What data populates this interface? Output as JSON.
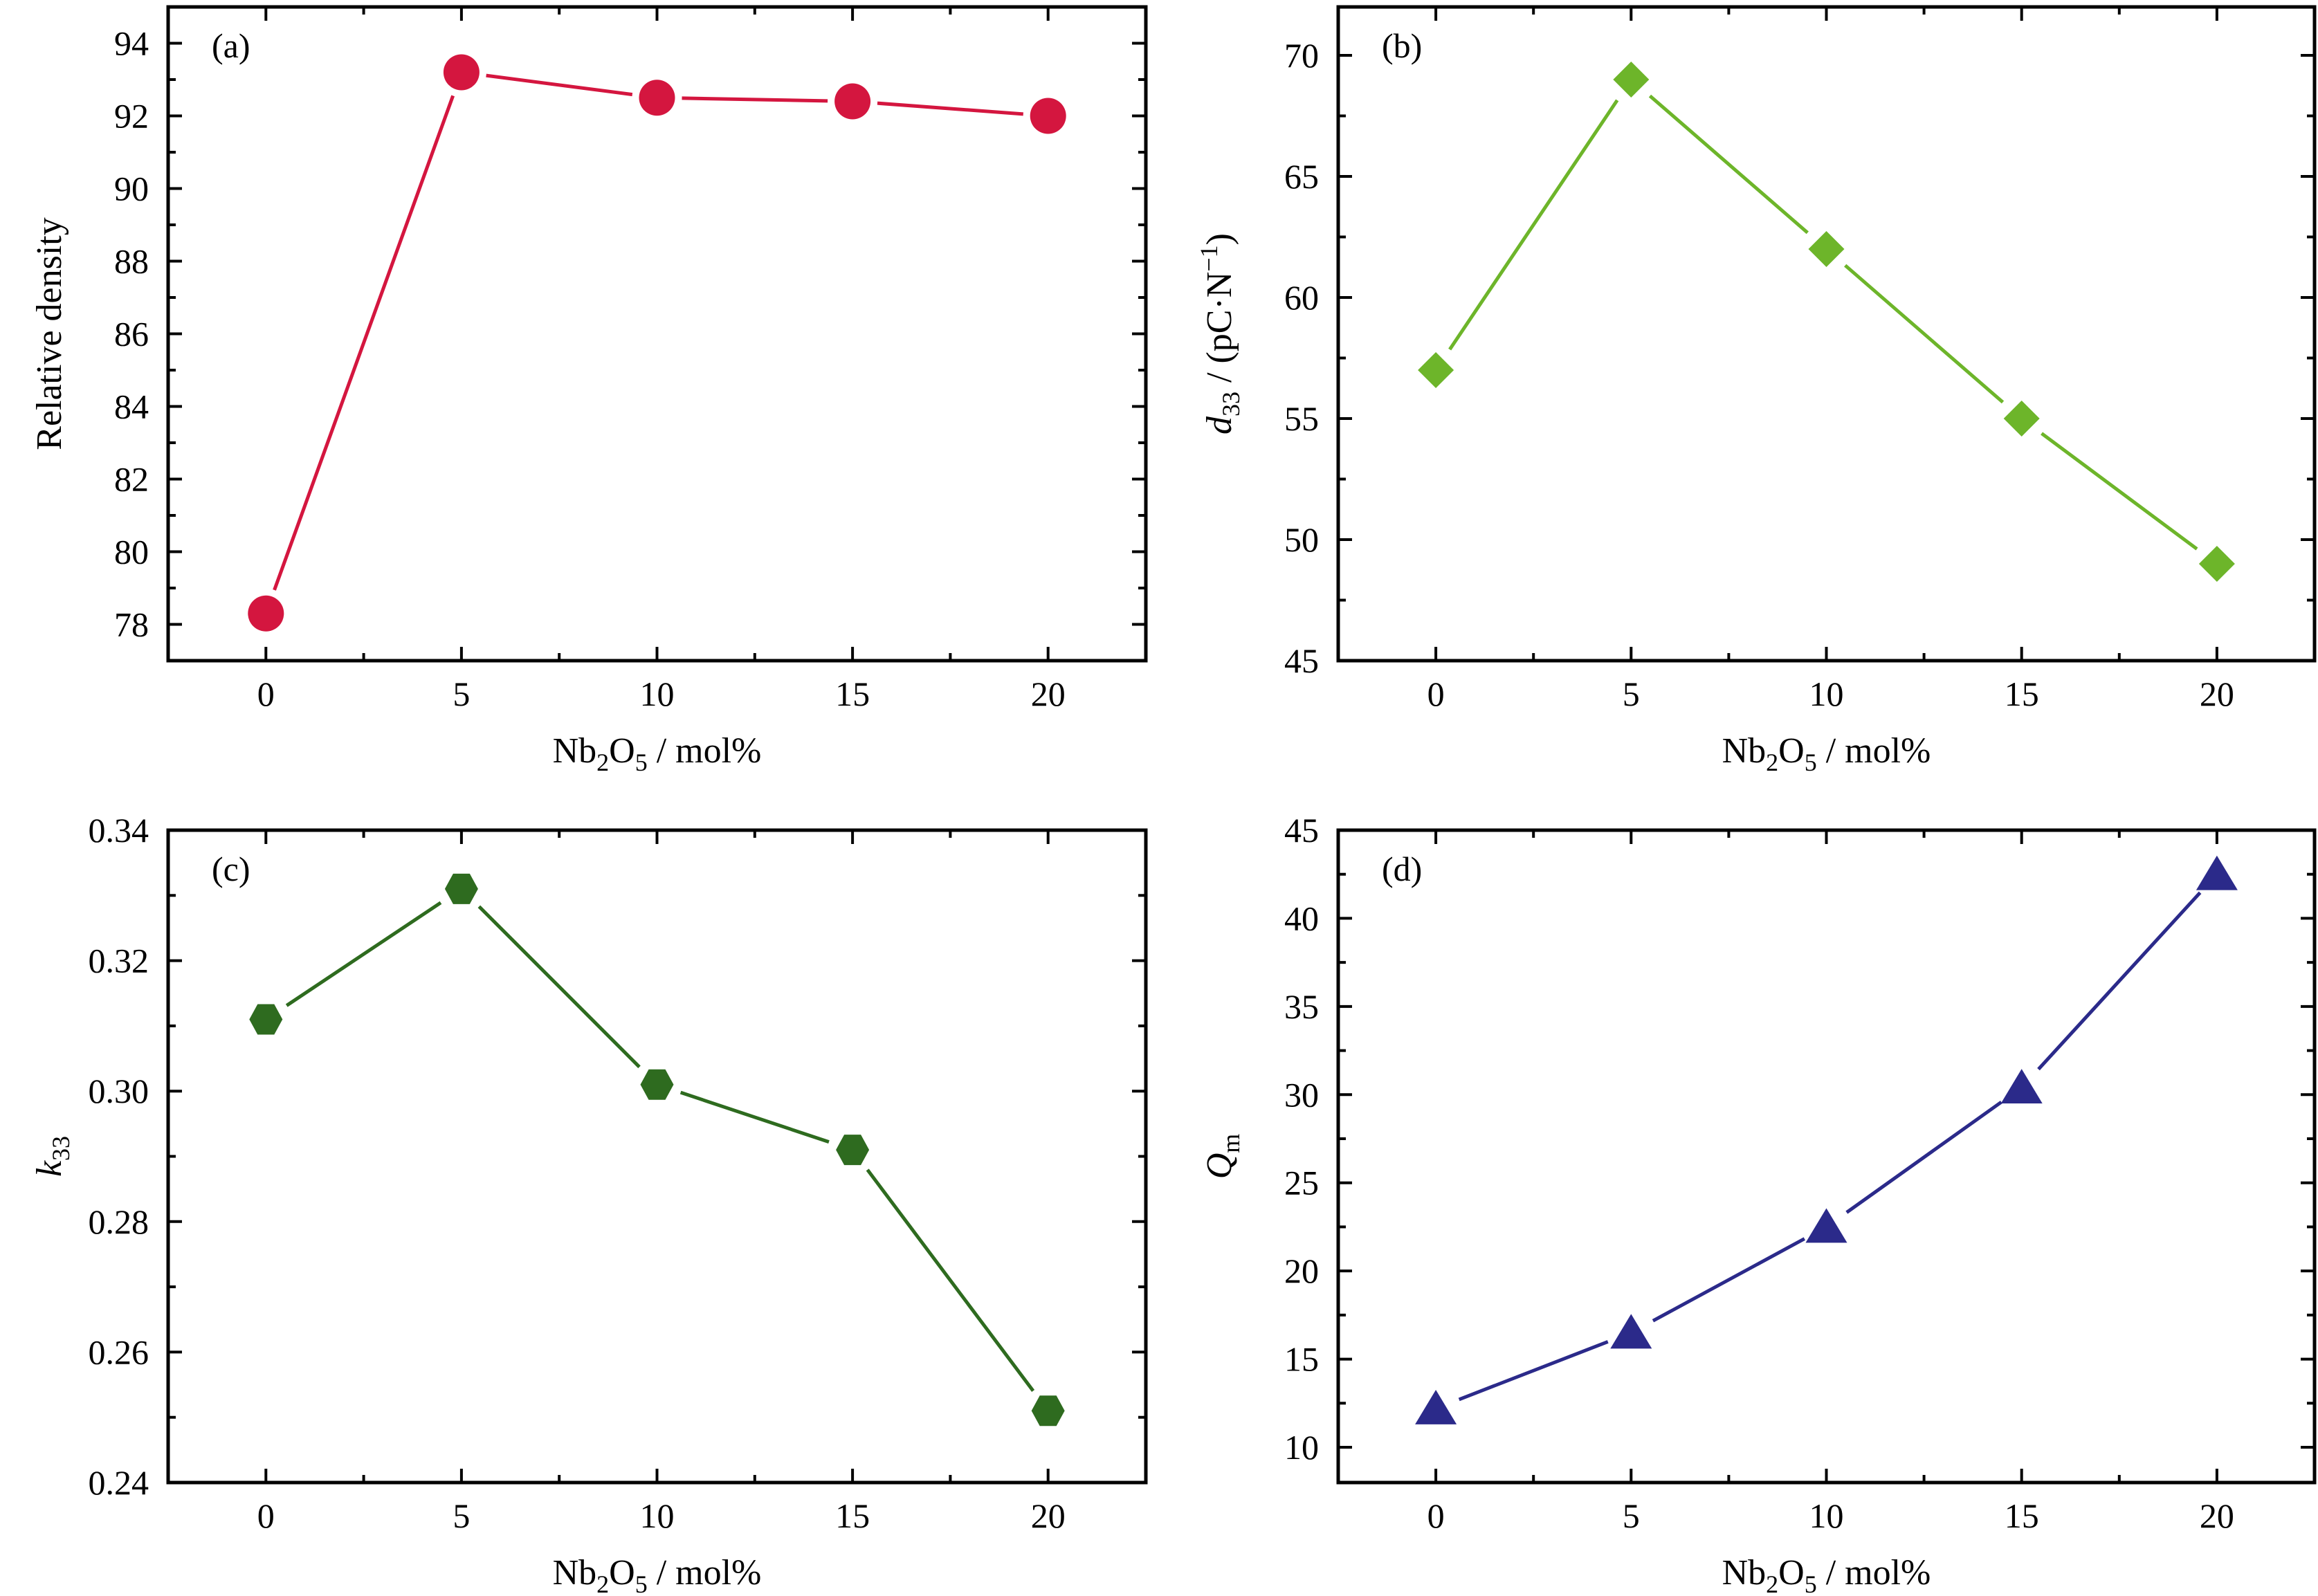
{
  "chart_data": [
    {
      "type": "line",
      "panel_label": "(a)",
      "x": [
        0,
        5,
        10,
        15,
        20
      ],
      "series": [
        {
          "values": [
            78.3,
            93.2,
            92.5,
            92.4,
            92.0
          ]
        }
      ],
      "xlabel": {
        "main": "Nb",
        "sub1": "2",
        "mid": "O",
        "sub2": "5",
        "tail": " / mol%"
      },
      "ylabel": {
        "main": "Relative density"
      },
      "xlim": [
        -2.5,
        22.5
      ],
      "ylim": [
        77,
        95
      ],
      "xticks": [
        0,
        5,
        10,
        15,
        20
      ],
      "yticks": [
        78,
        80,
        82,
        84,
        86,
        88,
        90,
        92,
        94
      ],
      "xtick_labels": [
        "0",
        "5",
        "10",
        "15",
        "20"
      ],
      "ytick_labels": [
        "78",
        "80",
        "82",
        "84",
        "86",
        "88",
        "90",
        "92",
        "94"
      ],
      "marker": "circle",
      "color": "#d4163f",
      "grid": false,
      "legend": false
    },
    {
      "type": "line",
      "panel_label": "(b)",
      "x": [
        0,
        5,
        10,
        15,
        20
      ],
      "series": [
        {
          "values": [
            57.0,
            69.0,
            62.0,
            55.0,
            49.0
          ]
        }
      ],
      "xlabel": {
        "main": "Nb",
        "sub1": "2",
        "mid": "O",
        "sub2": "5",
        "tail": " / mol%"
      },
      "ylabel": {
        "var": "d",
        "sub": "33",
        "tail": " / (pC·N",
        "sup": "−1",
        "end": ")"
      },
      "xlim": [
        -2.5,
        22.5
      ],
      "ylim": [
        45,
        72
      ],
      "xticks": [
        0,
        5,
        10,
        15,
        20
      ],
      "yticks": [
        45,
        50,
        55,
        60,
        65,
        70
      ],
      "xtick_labels": [
        "0",
        "5",
        "10",
        "15",
        "20"
      ],
      "ytick_labels": [
        "45",
        "50",
        "55",
        "60",
        "65",
        "70"
      ],
      "marker": "diamond",
      "color": "#6db52a",
      "grid": false,
      "legend": false
    },
    {
      "type": "line",
      "panel_label": "(c)",
      "x": [
        0,
        5,
        10,
        15,
        20
      ],
      "series": [
        {
          "values": [
            0.311,
            0.331,
            0.301,
            0.291,
            0.251
          ]
        }
      ],
      "xlabel": {
        "main": "Nb",
        "sub1": "2",
        "mid": "O",
        "sub2": "5",
        "tail": " / mol%"
      },
      "ylabel": {
        "var": "k",
        "sub": "33"
      },
      "xlim": [
        -2.5,
        22.5
      ],
      "ylim": [
        0.24,
        0.34
      ],
      "xticks": [
        0,
        5,
        10,
        15,
        20
      ],
      "yticks": [
        0.24,
        0.26,
        0.28,
        0.3,
        0.32,
        0.34
      ],
      "xtick_labels": [
        "0",
        "5",
        "10",
        "15",
        "20"
      ],
      "ytick_labels": [
        "0.24",
        "0.26",
        "0.28",
        "0.30",
        "0.32",
        "0.34"
      ],
      "marker": "hexagon",
      "color": "#2e6b1f",
      "grid": false,
      "legend": false
    },
    {
      "type": "line",
      "panel_label": "(d)",
      "x": [
        0,
        5,
        10,
        15,
        20
      ],
      "series": [
        {
          "values": [
            12.2,
            16.5,
            22.5,
            30.4,
            42.5
          ]
        }
      ],
      "xlabel": {
        "main": "Nb",
        "sub1": "2",
        "mid": "O",
        "sub2": "5",
        "tail": " / mol%"
      },
      "ylabel": {
        "var": "Q",
        "sub": "m"
      },
      "xlim": [
        -2.5,
        22.5
      ],
      "ylim": [
        8,
        45
      ],
      "xticks": [
        0,
        5,
        10,
        15,
        20
      ],
      "yticks": [
        10,
        15,
        20,
        25,
        30,
        35,
        40,
        45
      ],
      "xtick_labels": [
        "0",
        "5",
        "10",
        "15",
        "20"
      ],
      "ytick_labels": [
        "10",
        "15",
        "20",
        "25",
        "30",
        "35",
        "40",
        "45"
      ],
      "marker": "triangle",
      "color": "#2b2a8a",
      "grid": false,
      "legend": false
    }
  ]
}
